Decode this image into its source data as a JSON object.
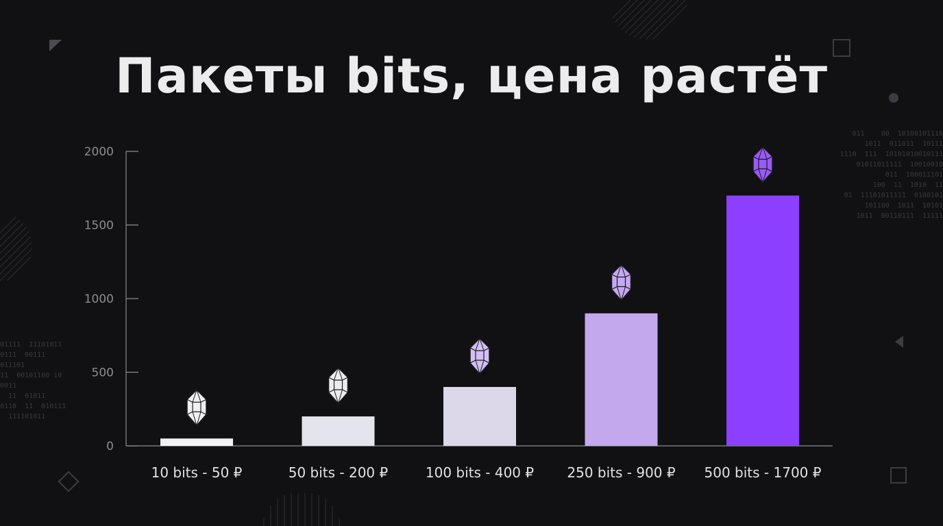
{
  "title": "Пакеты bits, цена растёт",
  "chart_data": {
    "type": "bar",
    "categories": [
      "10 bits - 50 ₽",
      "50 bits - 200 ₽",
      "100 bits - 400 ₽",
      "250 bits - 900 ₽",
      "500 bits - 1700 ₽"
    ],
    "values": [
      50,
      200,
      400,
      900,
      1700
    ],
    "ylim": [
      0,
      2000
    ],
    "yticks": [
      0,
      500,
      1000,
      1500,
      2000
    ],
    "grid": false,
    "colors": [
      "#f2f2f5",
      "#e4e4ec",
      "#dcd8ea",
      "#c4a8ee",
      "#8c3ffe"
    ],
    "gem_colors": [
      "#f0f0f0",
      "#ececec",
      "#d2bff3",
      "#c6a8f2",
      "#9a5af8"
    ],
    "marker_icon": "diamond-gem-icon"
  },
  "decorations": {
    "binary_right": "011    00  10100101110\n1011  011011  10111\n1110  111  10101010010111\n01011011111  10010010\n011  100011101\n100  11  1010  11\n01  11101011111  0100101\n101100  1011  10101\n1011  00110111  11111",
    "binary_left": "01111  11101011\n0111  00111\n011101\n11  00101100 10\n0011\n  11  01011\n0110  11  010111\n  111101011"
  }
}
